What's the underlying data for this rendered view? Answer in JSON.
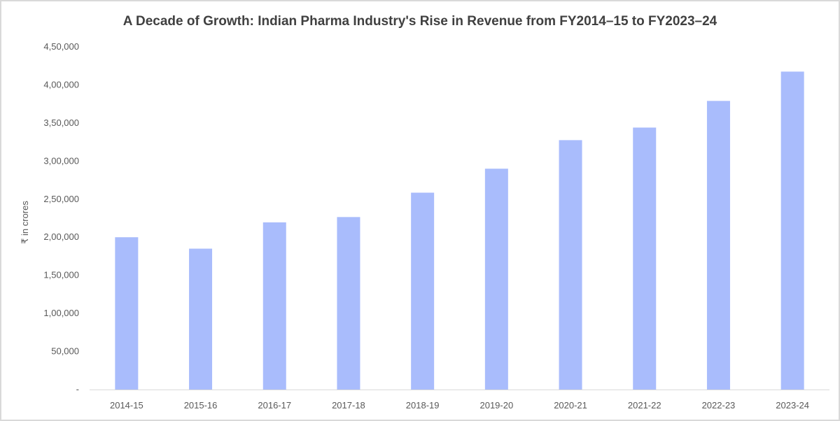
{
  "chart_data": {
    "type": "bar",
    "title": "A Decade of Growth: Indian Pharma Industry's Rise in Revenue from FY2014–15 to FY2023–24",
    "xlabel": "",
    "ylabel": "₹ in crores",
    "categories": [
      "2014-15",
      "2015-16",
      "2016-17",
      "2017-18",
      "2018-19",
      "2019-20",
      "2020-21",
      "2021-22",
      "2022-23",
      "2023-24"
    ],
    "values": [
      200000,
      185000,
      219500,
      226500,
      258500,
      290000,
      327500,
      344000,
      379000,
      417500
    ],
    "ylim": [
      0,
      450000
    ],
    "yticks": [
      0,
      50000,
      100000,
      150000,
      200000,
      250000,
      300000,
      350000,
      400000,
      450000
    ],
    "ytick_labels": [
      "-",
      "50,000",
      "1,00,000",
      "1,50,000",
      "2,00,000",
      "2,50,000",
      "3,00,000",
      "3,50,000",
      "4,00,000",
      "4,50,000"
    ],
    "grid": false,
    "legend": "none",
    "bar_color": "#a9bcfc",
    "axis_color": "#d9d9d9"
  }
}
